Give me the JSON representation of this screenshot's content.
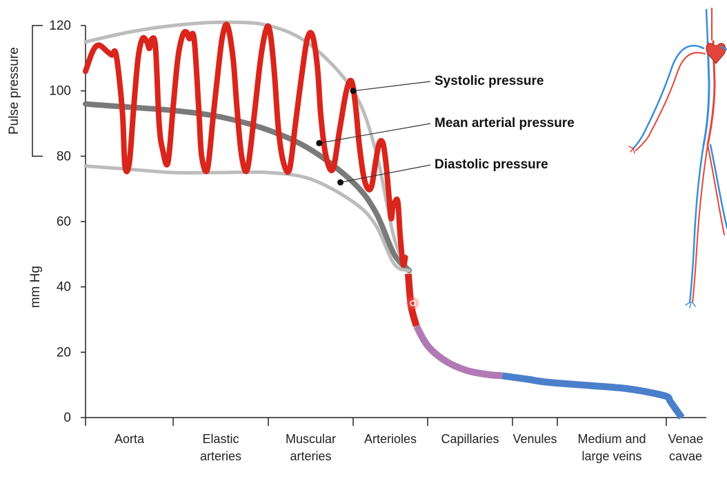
{
  "chart_data": {
    "type": "line",
    "y_axis": {
      "label": "mm Hg",
      "ticks": [
        0,
        20,
        40,
        60,
        80,
        100,
        120
      ],
      "ylim": [
        0,
        120
      ]
    },
    "pulse_pressure_label": "Pulse pressure",
    "categories": [
      {
        "id": "aorta",
        "lines": [
          "Aorta"
        ]
      },
      {
        "id": "elastic-arteries",
        "lines": [
          "Elastic",
          "arteries"
        ]
      },
      {
        "id": "muscular-arteries",
        "lines": [
          "Muscular",
          "arteries"
        ]
      },
      {
        "id": "arterioles",
        "lines": [
          "Arterioles"
        ]
      },
      {
        "id": "capillaries",
        "lines": [
          "Capillaries"
        ]
      },
      {
        "id": "venules",
        "lines": [
          "Venules"
        ]
      },
      {
        "id": "medium-large-veins",
        "lines": [
          "Medium and",
          "large veins"
        ]
      },
      {
        "id": "venae-cavae",
        "lines": [
          "Venae",
          "cavae"
        ]
      }
    ],
    "series": [
      {
        "name": "Systolic pressure",
        "color": "#bcbcbc",
        "values": [
          [
            0.0,
            115
          ],
          [
            0.5,
            118
          ],
          [
            1.0,
            120
          ],
          [
            1.5,
            121
          ],
          [
            2.0,
            120
          ],
          [
            2.5,
            114
          ],
          [
            3.0,
            100
          ],
          [
            3.3,
            82
          ],
          [
            3.55,
            55
          ],
          [
            3.75,
            45
          ]
        ]
      },
      {
        "name": "Mean arterial pressure",
        "color": "#7a7a7a",
        "values": [
          [
            0.0,
            96
          ],
          [
            0.5,
            95
          ],
          [
            1.0,
            94
          ],
          [
            1.5,
            92
          ],
          [
            2.0,
            88
          ],
          [
            2.5,
            82
          ],
          [
            3.0,
            72
          ],
          [
            3.3,
            63
          ],
          [
            3.55,
            50
          ],
          [
            3.75,
            45
          ]
        ]
      },
      {
        "name": "Diastolic pressure",
        "color": "#bcbcbc",
        "values": [
          [
            0.0,
            77
          ],
          [
            0.5,
            76
          ],
          [
            1.0,
            75
          ],
          [
            1.5,
            75
          ],
          [
            2.0,
            75
          ],
          [
            2.5,
            73
          ],
          [
            3.0,
            66
          ],
          [
            3.3,
            59
          ],
          [
            3.55,
            47
          ],
          [
            3.75,
            45
          ]
        ]
      }
    ],
    "pressure_wave": {
      "color": "#d9251c",
      "values": [
        [
          0.0,
          106
        ],
        [
          0.08,
          112
        ],
        [
          0.15,
          114
        ],
        [
          0.25,
          112
        ],
        [
          0.3,
          111
        ],
        [
          0.35,
          111
        ],
        [
          0.42,
          94
        ],
        [
          0.45,
          77
        ],
        [
          0.5,
          78
        ],
        [
          0.55,
          95
        ],
        [
          0.6,
          110
        ],
        [
          0.65,
          116
        ],
        [
          0.7,
          115
        ],
        [
          0.73,
          113
        ],
        [
          0.76,
          116
        ],
        [
          0.8,
          113
        ],
        [
          0.84,
          90
        ],
        [
          0.88,
          82
        ],
        [
          0.94,
          78
        ],
        [
          1.0,
          95
        ],
        [
          1.05,
          110
        ],
        [
          1.1,
          117
        ],
        [
          1.14,
          118
        ],
        [
          1.17,
          116
        ],
        [
          1.22,
          116
        ],
        [
          1.27,
          94
        ],
        [
          1.3,
          80
        ],
        [
          1.36,
          76
        ],
        [
          1.42,
          92
        ],
        [
          1.48,
          108
        ],
        [
          1.52,
          117
        ],
        [
          1.57,
          120
        ],
        [
          1.63,
          110
        ],
        [
          1.67,
          95
        ],
        [
          1.72,
          80
        ],
        [
          1.78,
          76
        ],
        [
          1.85,
          92
        ],
        [
          1.92,
          110
        ],
        [
          1.98,
          119
        ],
        [
          2.02,
          118
        ],
        [
          2.07,
          106
        ],
        [
          2.12,
          88
        ],
        [
          2.18,
          78
        ],
        [
          2.25,
          76
        ],
        [
          2.32,
          90
        ],
        [
          2.4,
          106
        ],
        [
          2.46,
          116
        ],
        [
          2.52,
          117
        ],
        [
          2.58,
          107
        ],
        [
          2.62,
          92
        ],
        [
          2.68,
          80
        ],
        [
          2.76,
          76
        ],
        [
          2.84,
          88
        ],
        [
          2.92,
          100
        ],
        [
          2.98,
          103
        ],
        [
          3.03,
          96
        ],
        [
          3.08,
          84
        ],
        [
          3.14,
          74
        ],
        [
          3.2,
          70
        ],
        [
          3.25,
          71
        ],
        [
          3.3,
          78
        ],
        [
          3.35,
          84
        ],
        [
          3.4,
          84
        ],
        [
          3.44,
          78
        ],
        [
          3.48,
          68
        ],
        [
          3.51,
          61
        ],
        [
          3.53,
          64
        ],
        [
          3.56,
          66
        ],
        [
          3.6,
          66
        ],
        [
          3.63,
          56
        ],
        [
          3.67,
          47
        ],
        [
          3.7,
          49
        ]
      ]
    },
    "downstream_segments": [
      {
        "region": "arterioles-end",
        "color": "#d9251c",
        "values": [
          [
            3.74,
            44
          ],
          [
            3.76,
            38
          ],
          [
            3.78,
            34
          ],
          [
            3.81,
            31
          ],
          [
            3.85,
            28
          ]
        ]
      },
      {
        "region": "capillaries",
        "color": "#b27ab5",
        "values": [
          [
            3.85,
            28
          ],
          [
            4.0,
            22
          ],
          [
            4.2,
            17.5
          ],
          [
            4.45,
            14.5
          ],
          [
            4.7,
            13.2
          ],
          [
            4.88,
            12.8
          ]
        ]
      },
      {
        "region": "veins",
        "color": "#4a7fcb",
        "values": [
          [
            4.88,
            12.8
          ],
          [
            5.3,
            11.8
          ],
          [
            5.8,
            10.8
          ],
          [
            6.3,
            9.8
          ],
          [
            6.6,
            9
          ],
          [
            6.8,
            8
          ],
          [
            7.0,
            6.5
          ],
          [
            7.1,
            5
          ],
          [
            7.25,
            2.5
          ],
          [
            7.4,
            0
          ]
        ]
      }
    ],
    "annotations": [
      {
        "label": "Systolic pressure",
        "point": [
          3.0,
          100
        ]
      },
      {
        "label": "Mean arterial pressure",
        "point": [
          2.6,
          84
        ]
      },
      {
        "label": "Diastolic pressure",
        "point": [
          2.85,
          72
        ]
      }
    ],
    "grid": false,
    "legend": "none"
  },
  "figure": {
    "name": "human-circulatory-system-illustration",
    "artery_color": "#e2463a",
    "vein_color": "#3a8fd9"
  }
}
